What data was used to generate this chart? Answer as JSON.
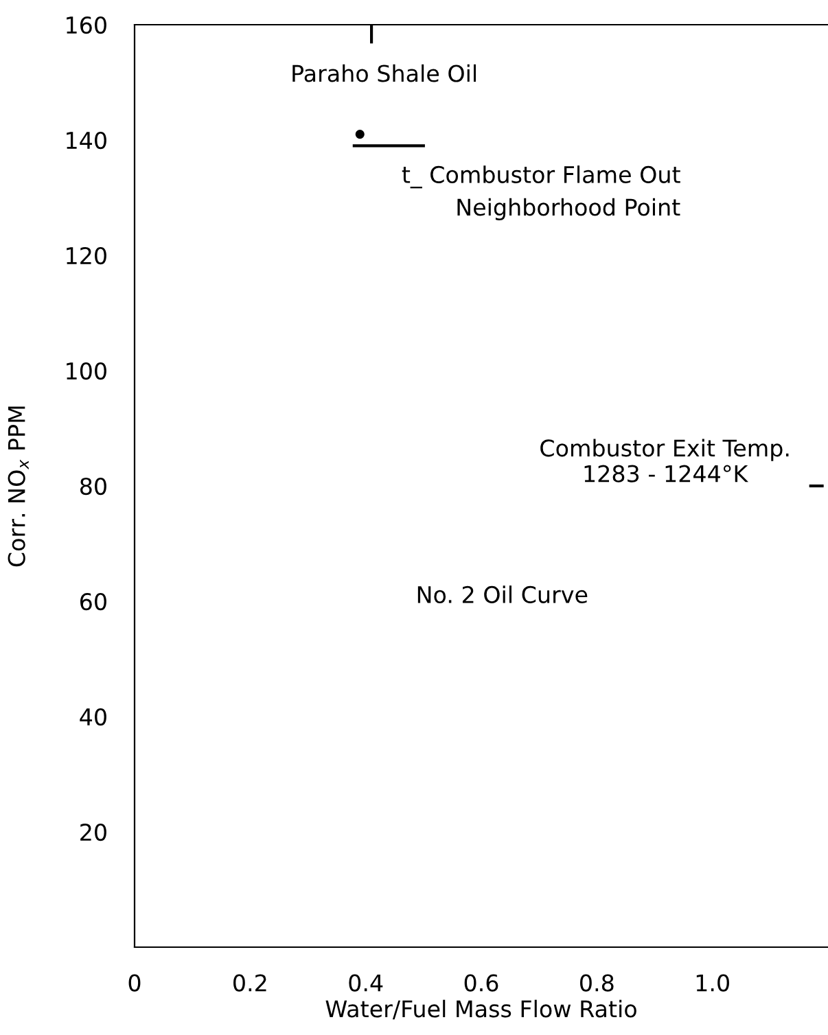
{
  "chart_data": {
    "type": "line",
    "xlabel": "Water/Fuel Mass Flow Ratio",
    "ylabel": "Corr. NO$_{x}$ PPM",
    "xlim": [
      0,
      1.2
    ],
    "xticks": [
      0,
      0.2,
      0.4,
      0.6,
      0.8,
      {
        "value": 1.0,
        "label": "1.0"
      }
    ],
    "ylim": [
      0,
      160
    ],
    "yticks": [
      20,
      40,
      60,
      80,
      100,
      120,
      140,
      160,
      {
        "value": 0,
        "label": null
      }
    ],
    "series": [
      {
        "type": "scatter",
        "color": "#000000",
        "marker": "circle",
        "x": [
          0.39
        ],
        "values": [
          141
        ]
      },
      {
        "color": "#000000",
        "x": [
          0.38,
          0.5
        ],
        "values": [
          139,
          139
        ]
      },
      {
        "color": "#000000",
        "x": [
          0.41,
          0.41
        ],
        "values": [
          157,
          160
        ]
      },
      {
        "color": "#000000",
        "x": [
          1.17,
          1.19
        ],
        "values": [
          80,
          80
        ]
      }
    ],
    "annotations": [
      "Paraho Shale Oil",
      "t_ Combustor Flame Out",
      "Neighborhood Point",
      "Combustor Exit Temp.\n1283 - 1244°K",
      "No. 2 Oil Curve"
    ],
    "grid": false,
    "legend": false
  }
}
